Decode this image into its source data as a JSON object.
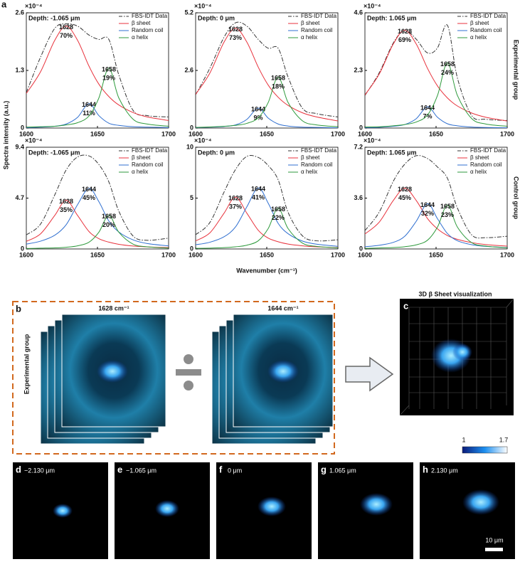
{
  "panel_letter": "a",
  "y_axis_label": "Spectra intensity (a.u.)",
  "x_axis_label": "Wavenumber (cm⁻¹)",
  "multiplier": "×10⁻⁴",
  "groups": [
    "Experimental group",
    "Control group"
  ],
  "chart_data": [
    {
      "type": "line",
      "title": "Depth: -1.065 μm",
      "x": [
        1600,
        1610,
        1620,
        1628,
        1636,
        1644,
        1651,
        1658,
        1665,
        1675,
        1685,
        1700
      ],
      "xlim": [
        1600,
        1700
      ],
      "xticks": [
        1600,
        1650,
        1700
      ],
      "ylim": [
        0,
        2.6
      ],
      "yticks": [
        0,
        1.3,
        2.6
      ],
      "series": [
        {
          "name": "FBS-IDT Data",
          "color": "#333333",
          "dash": true,
          "values": [
            0.8,
            1.6,
            2.25,
            2.35,
            2.3,
            2.1,
            2.0,
            2.0,
            1.2,
            0.4,
            0.28,
            0.25
          ]
        },
        {
          "name": "β sheet",
          "color": "#e8323c",
          "values": [
            0.78,
            1.27,
            1.98,
            2.3,
            1.98,
            1.4,
            0.99,
            0.71,
            0.52,
            0.35,
            0.25,
            0.17
          ],
          "peak_label": "1628",
          "share_label": "70%"
        },
        {
          "name": "Random coil",
          "color": "#2f6fd0",
          "values": [
            0.01,
            0.02,
            0.04,
            0.09,
            0.24,
            0.55,
            0.28,
            0.11,
            0.06,
            0.03,
            0.02,
            0.01
          ],
          "peak_label": "1644",
          "share_label": "11%"
        },
        {
          "name": "α helix",
          "color": "#2e9a3c",
          "values": [
            0.02,
            0.03,
            0.04,
            0.07,
            0.12,
            0.27,
            0.68,
            1.35,
            0.68,
            0.2,
            0.09,
            0.04
          ],
          "peak_label": "1658",
          "share_label": "19%"
        }
      ]
    },
    {
      "type": "line",
      "title": "Depth: 0 μm",
      "x": [
        1600,
        1610,
        1620,
        1628,
        1636,
        1644,
        1651,
        1658,
        1665,
        1675,
        1685,
        1700
      ],
      "xlim": [
        1600,
        1700
      ],
      "xticks": [
        1600,
        1650,
        1700
      ],
      "ylim": [
        0,
        5.2
      ],
      "yticks": [
        0,
        2.6,
        5.2
      ],
      "series": [
        {
          "name": "FBS-IDT Data",
          "color": "#333333",
          "dash": true,
          "values": [
            1.5,
            2.7,
            4.1,
            4.75,
            4.6,
            4.0,
            3.6,
            3.6,
            2.3,
            0.9,
            0.65,
            0.5
          ]
        },
        {
          "name": "β sheet",
          "color": "#e8323c",
          "values": [
            1.52,
            2.48,
            3.88,
            4.5,
            3.88,
            2.75,
            1.94,
            1.39,
            1.02,
            0.69,
            0.5,
            0.32
          ],
          "peak_label": "1628",
          "share_label": "73%"
        },
        {
          "name": "Random coil",
          "color": "#2f6fd0",
          "values": [
            0.02,
            0.04,
            0.07,
            0.14,
            0.39,
            0.9,
            0.45,
            0.18,
            0.09,
            0.04,
            0.03,
            0.01
          ],
          "peak_label": "1644",
          "share_label": "9%"
        },
        {
          "name": "α helix",
          "color": "#2e9a3c",
          "values": [
            0.03,
            0.05,
            0.08,
            0.12,
            0.21,
            0.46,
            1.15,
            2.3,
            1.15,
            0.33,
            0.14,
            0.06
          ],
          "peak_label": "1658",
          "share_label": "18%"
        }
      ]
    },
    {
      "type": "line",
      "title": "Depth: 1.065 μm",
      "x": [
        1600,
        1610,
        1620,
        1628,
        1636,
        1644,
        1651,
        1658,
        1665,
        1675,
        1685,
        1700
      ],
      "xlim": [
        1600,
        1700
      ],
      "xticks": [
        1600,
        1650,
        1700
      ],
      "ylim": [
        0,
        4.6
      ],
      "yticks": [
        0,
        2.3,
        4.6
      ],
      "series": [
        {
          "name": "FBS-IDT Data",
          "color": "#333333",
          "dash": true,
          "values": [
            1.3,
            2.2,
            3.4,
            3.9,
            3.55,
            3.0,
            3.2,
            4.1,
            2.0,
            0.5,
            0.35,
            0.3
          ]
        },
        {
          "name": "β sheet",
          "color": "#e8323c",
          "values": [
            1.32,
            2.15,
            3.36,
            3.9,
            3.36,
            2.38,
            1.68,
            1.2,
            0.88,
            0.6,
            0.43,
            0.28
          ],
          "peak_label": "1628",
          "share_label": "69%"
        },
        {
          "name": "Random coil",
          "color": "#2f6fd0",
          "values": [
            0.02,
            0.03,
            0.07,
            0.14,
            0.37,
            0.85,
            0.43,
            0.17,
            0.09,
            0.04,
            0.02,
            0.01
          ],
          "peak_label": "1644",
          "share_label": "7%"
        },
        {
          "name": "α helix",
          "color": "#2e9a3c",
          "values": [
            0.04,
            0.05,
            0.09,
            0.14,
            0.24,
            0.52,
            1.3,
            2.6,
            1.3,
            0.38,
            0.16,
            0.07
          ],
          "peak_label": "1658",
          "share_label": "24%"
        }
      ]
    },
    {
      "type": "line",
      "title": "Depth: -1.065 μm",
      "x": [
        1600,
        1610,
        1620,
        1628,
        1636,
        1644,
        1651,
        1658,
        1665,
        1675,
        1685,
        1700
      ],
      "xlim": [
        1600,
        1700
      ],
      "xticks": [
        1600,
        1650,
        1700
      ],
      "ylim": [
        0,
        9.4
      ],
      "yticks": [
        0,
        4.7,
        9.4
      ],
      "series": [
        {
          "name": "FBS-IDT Data",
          "color": "#333333",
          "dash": true,
          "values": [
            1.3,
            2.3,
            5.0,
            7.3,
            8.5,
            8.6,
            7.8,
            6.2,
            3.5,
            1.2,
            0.8,
            1.0
          ]
        },
        {
          "name": "β sheet",
          "color": "#e8323c",
          "values": [
            0.7,
            1.4,
            3.1,
            4.5,
            3.1,
            1.62,
            0.95,
            0.63,
            0.43,
            0.27,
            0.19,
            0.12
          ],
          "peak_label": "1628",
          "share_label": "35%"
        },
        {
          "name": "Random coil",
          "color": "#2f6fd0",
          "values": [
            0.45,
            0.72,
            1.27,
            2.24,
            4.09,
            5.6,
            4.37,
            2.58,
            1.57,
            0.84,
            0.5,
            0.28
          ],
          "peak_label": "1644",
          "share_label": "45%"
        },
        {
          "name": "α helix",
          "color": "#2e9a3c",
          "values": [
            0.04,
            0.07,
            0.1,
            0.16,
            0.29,
            0.62,
            1.55,
            3.1,
            1.55,
            0.45,
            0.2,
            0.08
          ],
          "peak_label": "1658",
          "share_label": "20%"
        }
      ]
    },
    {
      "type": "line",
      "title": "Depth: 0 μm",
      "x": [
        1600,
        1610,
        1620,
        1628,
        1636,
        1644,
        1651,
        1658,
        1665,
        1675,
        1685,
        1700
      ],
      "xlim": [
        1600,
        1700
      ],
      "xticks": [
        1600,
        1650,
        1700
      ],
      "ylim": [
        0,
        10
      ],
      "yticks": [
        0,
        5,
        10
      ],
      "series": [
        {
          "name": "FBS-IDT Data",
          "color": "#333333",
          "dash": true,
          "values": [
            1.4,
            2.6,
            5.6,
            7.8,
            9.1,
            9.0,
            8.2,
            6.8,
            3.6,
            1.3,
            0.8,
            0.9
          ]
        },
        {
          "name": "β sheet",
          "color": "#e8323c",
          "values": [
            0.79,
            1.58,
            3.52,
            5.1,
            3.52,
            1.84,
            1.07,
            0.71,
            0.48,
            0.31,
            0.21,
            0.14
          ],
          "peak_label": "1628",
          "share_label": "37%"
        },
        {
          "name": "Random coil",
          "color": "#2f6fd0",
          "values": [
            0.41,
            0.66,
            1.2,
            2.16,
            4.14,
            6.0,
            4.5,
            2.52,
            1.5,
            0.78,
            0.47,
            0.26
          ],
          "peak_label": "1644",
          "share_label": "41%"
        },
        {
          "name": "α helix",
          "color": "#2e9a3c",
          "values": [
            0.06,
            0.08,
            0.13,
            0.21,
            0.37,
            0.8,
            2.0,
            4.0,
            2.0,
            0.58,
            0.25,
            0.11
          ],
          "peak_label": "1658",
          "share_label": "22%"
        }
      ]
    },
    {
      "type": "line",
      "title": "Depth: 1.065 μm",
      "x": [
        1600,
        1610,
        1620,
        1628,
        1636,
        1644,
        1651,
        1658,
        1665,
        1675,
        1685,
        1700
      ],
      "xlim": [
        1600,
        1700
      ],
      "xticks": [
        1600,
        1650,
        1700
      ],
      "ylim": [
        0,
        7.2
      ],
      "yticks": [
        0,
        3.6,
        7.2
      ],
      "series": [
        {
          "name": "FBS-IDT Data",
          "color": "#333333",
          "dash": true,
          "values": [
            1.3,
            2.6,
            4.8,
            6.0,
            6.6,
            6.4,
            5.8,
            5.0,
            2.9,
            1.0,
            0.8,
            0.9
          ]
        },
        {
          "name": "β sheet",
          "color": "#e8323c",
          "values": [
            1.06,
            1.89,
            3.44,
            4.3,
            3.44,
            2.15,
            1.42,
            0.95,
            0.68,
            0.45,
            0.31,
            0.2
          ],
          "peak_label": "1628",
          "share_label": "45%"
        },
        {
          "name": "Random coil",
          "color": "#2f6fd0",
          "values": [
            0.16,
            0.26,
            0.47,
            0.9,
            1.95,
            3.2,
            2.14,
            1.09,
            0.58,
            0.3,
            0.18,
            0.1
          ],
          "peak_label": "1644",
          "share_label": "32%"
        },
        {
          "name": "α helix",
          "color": "#2e9a3c",
          "values": [
            0.04,
            0.07,
            0.1,
            0.16,
            0.29,
            0.62,
            1.55,
            3.1,
            1.55,
            0.45,
            0.2,
            0.08
          ],
          "peak_label": "1658",
          "share_label": "23%"
        }
      ]
    }
  ],
  "panel_b": {
    "letter": "b",
    "channels": [
      "1628 cm⁻¹",
      "1644 cm⁻¹"
    ],
    "group": "Experimental group"
  },
  "panel_c": {
    "letter": "c",
    "title": "3D β Sheet visualization"
  },
  "slices": [
    {
      "letter": "d",
      "depth": "−2.130 μm"
    },
    {
      "letter": "e",
      "depth": "−1.065 μm"
    },
    {
      "letter": "f",
      "depth": "0 μm"
    },
    {
      "letter": "g",
      "depth": "1.065 μm"
    },
    {
      "letter": "h",
      "depth": "2.130 μm"
    }
  ],
  "colorbar": {
    "min": "1",
    "max": "1.7"
  },
  "scale_bar": "10 μm"
}
